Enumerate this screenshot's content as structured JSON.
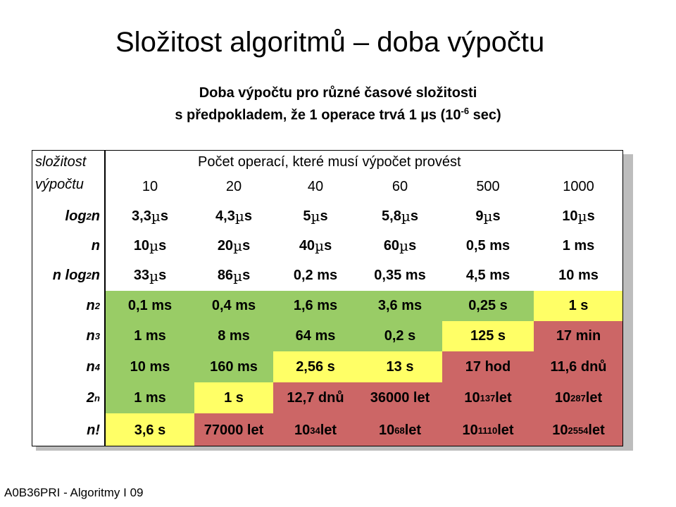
{
  "title": "Složitost algoritmů – doba výpočtu",
  "subtitle": {
    "line1": "Doba výpočtu pro různé časové složitosti",
    "line2_prefix": "s předpokladem, že 1 operace trvá 1 µs (10",
    "line2_exp": "-6",
    "line2_suffix": " sec)"
  },
  "table": {
    "corner": {
      "line1": "složitost",
      "line2": "výpočtu"
    },
    "header_title": "Počet operací, které musí výpočet provést",
    "columns": [
      "10",
      "20",
      "40",
      "60",
      "500",
      "1000"
    ],
    "rows": [
      {
        "label": "log",
        "label_sub": "2",
        "label_suffix": " n",
        "cells": [
          "3,3 µs",
          "4,3 µs",
          "5 µs",
          "5,8 µs",
          "9 µs",
          "10 µs"
        ],
        "colors": [
          "none",
          "none",
          "none",
          "none",
          "none",
          "none"
        ]
      },
      {
        "label": "n",
        "cells": [
          "10 µs",
          "20 µs",
          "40 µs",
          "60 µs",
          "0,5 ms",
          "1 ms"
        ],
        "colors": [
          "none",
          "none",
          "none",
          "none",
          "none",
          "none"
        ]
      },
      {
        "label": "n log",
        "label_sub": "2",
        "label_suffix": " n",
        "cells": [
          "33 µs",
          "86 µs",
          "0,2 ms",
          "0,35 ms",
          "4,5 ms",
          "10 ms"
        ],
        "colors": [
          "none",
          "none",
          "none",
          "none",
          "none",
          "none"
        ]
      },
      {
        "label": "n",
        "label_sup": "2",
        "cells": [
          "0,1 ms",
          "0,4 ms",
          "1,6 ms",
          "3,6 ms",
          "0,25 s",
          "1 s"
        ],
        "colors": [
          "green",
          "green",
          "green",
          "green",
          "green",
          "yellow"
        ]
      },
      {
        "label": "n",
        "label_sup": "3",
        "cells": [
          "1 ms",
          "8 ms",
          "64 ms",
          "0,2 s",
          "125 s",
          "17 min"
        ],
        "colors": [
          "green",
          "green",
          "green",
          "green",
          "yellow",
          "red"
        ]
      },
      {
        "label": "n",
        "label_sup": "4",
        "cells": [
          "10 ms",
          "160 ms",
          "2,56 s",
          "13 s",
          "17 hod",
          "11,6 dnů"
        ],
        "colors": [
          "green",
          "green",
          "yellow",
          "yellow",
          "red",
          "red"
        ]
      },
      {
        "label": "2",
        "label_sup": "n",
        "cells": [
          "1 ms",
          "1 s",
          "12,7 dnů",
          "36000 let",
          "10^137 let",
          "10^287 let"
        ],
        "colors": [
          "green",
          "yellow",
          "red",
          "red",
          "red",
          "red"
        ]
      },
      {
        "label": "n!",
        "cells": [
          "3,6 s",
          "77000 let",
          "10^34 let",
          "10^68 let",
          "10^1110 let",
          "10^2554 let"
        ],
        "colors": [
          "yellow",
          "red",
          "red",
          "red",
          "red",
          "red"
        ]
      }
    ]
  },
  "colors": {
    "green": "#99cc66",
    "yellow": "#ffff66",
    "red": "#cc6666"
  },
  "footer": "A0B36PRI - Algoritmy I 09"
}
